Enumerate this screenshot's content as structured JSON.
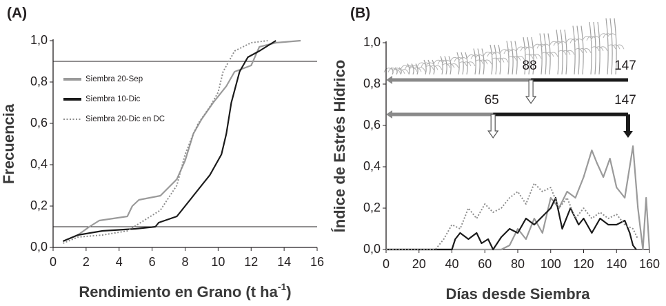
{
  "chart_data": [
    {
      "type": "line",
      "panel": "(A)",
      "ylabel": "Frecuencia",
      "xlabel": "Rendimiento en Grano (t ha",
      "xlabel_sup": "-1",
      "xlabel_end": ")",
      "xlim": [
        0,
        16
      ],
      "xticks": [
        0,
        2,
        4,
        6,
        8,
        10,
        12,
        14,
        16
      ],
      "ylim": [
        0,
        1.0
      ],
      "yticks": [
        {
          "value": 0,
          "label": "0,0"
        },
        {
          "value": 0.2,
          "label": "0,2"
        },
        {
          "value": 0.4,
          "label": "0,4"
        },
        {
          "value": 0.6,
          "label": "0,6"
        },
        {
          "value": 0.8,
          "label": "0,8"
        },
        {
          "value": 1.0,
          "label": "1,0"
        }
      ],
      "hlines": [
        0.1,
        0.9
      ],
      "series": [
        {
          "name": "Siembra 20-Sep",
          "color": "#9a9a9a",
          "linestyle": "solid",
          "x": [
            0.6,
            1.5,
            2.2,
            2.8,
            4.5,
            4.8,
            5.2,
            6.5,
            7.5,
            8,
            8.5,
            9,
            9.7,
            10.5,
            11,
            12,
            12.5,
            13.5,
            15
          ],
          "values": [
            0.03,
            0.06,
            0.1,
            0.13,
            0.15,
            0.2,
            0.23,
            0.25,
            0.33,
            0.42,
            0.55,
            0.62,
            0.7,
            0.78,
            0.85,
            0.88,
            0.97,
            0.99,
            1.0
          ]
        },
        {
          "name": "Siembra 10-Dic",
          "color": "#1a1a1a",
          "linestyle": "solid",
          "x": [
            0.6,
            1.5,
            3,
            5,
            6.2,
            6.4,
            7.5,
            8.2,
            8.8,
            9.5,
            10.2,
            10.5,
            10.8,
            11.3,
            11.8,
            12.5,
            13.5
          ],
          "values": [
            0.03,
            0.06,
            0.08,
            0.09,
            0.1,
            0.12,
            0.15,
            0.22,
            0.28,
            0.35,
            0.45,
            0.55,
            0.7,
            0.85,
            0.92,
            0.95,
            1.0
          ]
        },
        {
          "name": "Siembra 20-Dic en DC",
          "color": "#8c8c8c",
          "linestyle": "dotted",
          "x": [
            0.6,
            1.5,
            3,
            4.5,
            5.5,
            6.5,
            7.5,
            8,
            8.5,
            8.8,
            9.5,
            10,
            10.3,
            11,
            12,
            13
          ],
          "values": [
            0.02,
            0.05,
            0.06,
            0.08,
            0.13,
            0.18,
            0.3,
            0.45,
            0.55,
            0.6,
            0.68,
            0.75,
            0.85,
            0.95,
            0.99,
            1.0
          ]
        }
      ]
    },
    {
      "type": "line",
      "panel": "(B)",
      "ylabel": "Índice de Estrés Hídrico",
      "xlabel": "Días desde Siembra",
      "xlim": [
        0,
        160
      ],
      "xticks": [
        0,
        20,
        40,
        60,
        80,
        100,
        120,
        140,
        160
      ],
      "ylim": [
        0,
        1.0
      ],
      "yticks": [
        {
          "value": 0,
          "label": "0,0"
        },
        {
          "value": 0.2,
          "label": "0,2"
        },
        {
          "value": 0.4,
          "label": "0,4"
        },
        {
          "value": 0.6,
          "label": "0,6"
        },
        {
          "value": 0.8,
          "label": "0,8"
        },
        {
          "value": 1.0,
          "label": "1,0"
        }
      ],
      "phases": [
        {
          "start": 88,
          "end": 147
        },
        {
          "start": 65,
          "end": 147
        }
      ],
      "series": [
        {
          "color": "#9a9a9a",
          "linestyle": "solid",
          "x": [
            0,
            70,
            75,
            80,
            85,
            90,
            95,
            100,
            105,
            110,
            115,
            120,
            125,
            128,
            132,
            136,
            140,
            145,
            150,
            153,
            156,
            158,
            160
          ],
          "values": [
            0,
            0,
            0.02,
            0.1,
            0.05,
            0.15,
            0.08,
            0.25,
            0.2,
            0.28,
            0.25,
            0.35,
            0.48,
            0.42,
            0.35,
            0.44,
            0.3,
            0.25,
            0.5,
            0.2,
            0.0,
            0.25,
            0.0
          ]
        },
        {
          "color": "#1a1a1a",
          "linestyle": "solid",
          "x": [
            0,
            40,
            42,
            45,
            50,
            55,
            58,
            62,
            65,
            70,
            75,
            80,
            85,
            90,
            95,
            100,
            103,
            107,
            112,
            117,
            120,
            125,
            130,
            135,
            140,
            145,
            148,
            150,
            152
          ],
          "values": [
            0,
            0,
            0.05,
            0.08,
            0.05,
            0.08,
            0.03,
            0.05,
            0,
            0.06,
            0.1,
            0.08,
            0.15,
            0.12,
            0.16,
            0.2,
            0.25,
            0.1,
            0.2,
            0.12,
            0.15,
            0.08,
            0.15,
            0.12,
            0.12,
            0.14,
            0.08,
            0.02,
            0.0
          ]
        },
        {
          "color": "#8c8c8c",
          "linestyle": "dotted",
          "x": [
            0,
            30,
            35,
            40,
            45,
            50,
            55,
            60,
            65,
            70,
            75,
            80,
            85,
            90,
            95,
            100,
            105,
            110,
            115,
            120,
            125,
            130,
            135,
            140,
            145,
            150,
            153
          ],
          "values": [
            0,
            0,
            0.05,
            0.12,
            0.1,
            0.2,
            0.15,
            0.22,
            0.18,
            0.2,
            0.25,
            0.28,
            0.22,
            0.32,
            0.28,
            0.3,
            0.2,
            0.25,
            0.15,
            0.2,
            0.15,
            0.18,
            0.15,
            0.17,
            0.12,
            0.1,
            0.05
          ]
        }
      ]
    }
  ]
}
